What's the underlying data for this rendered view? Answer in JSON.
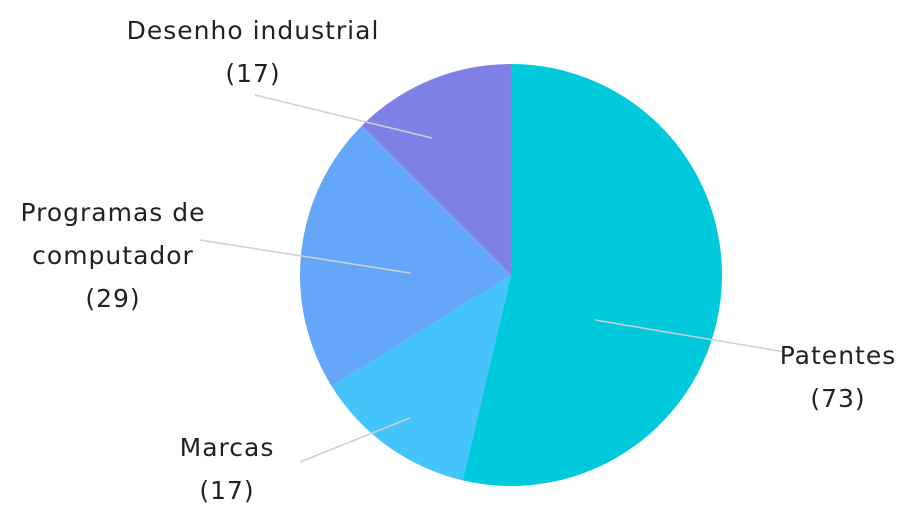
{
  "chart_data": {
    "type": "pie",
    "categories": [
      "Patentes",
      "Marcas",
      "Programas de computador",
      "Desenho industrial"
    ],
    "values": [
      73,
      17,
      29,
      17
    ],
    "value_labels": [
      "(73)",
      "(17)",
      "(29)",
      "(17)"
    ],
    "colors": [
      "#00c9dc",
      "#45c3fb",
      "#64a6f8",
      "#7f80e6"
    ]
  }
}
